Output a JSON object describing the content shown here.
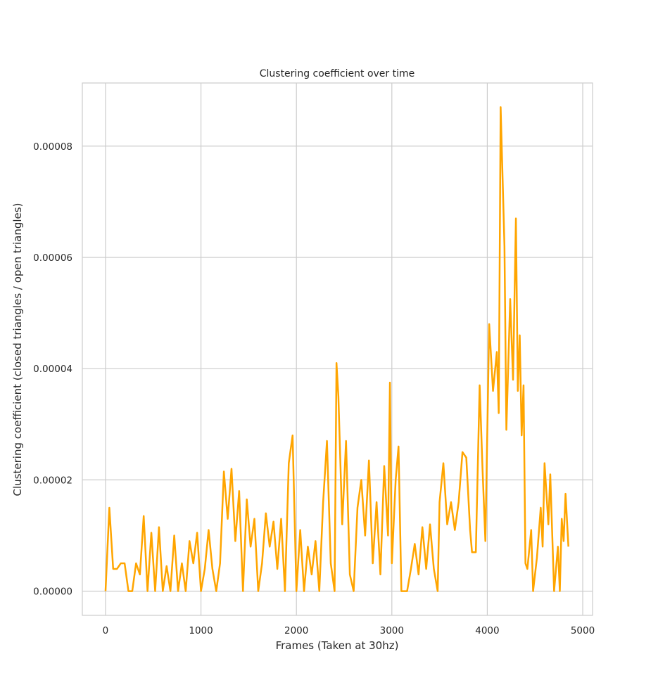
{
  "chart_data": {
    "type": "line",
    "title": "Clustering coefficient over time",
    "x_label": "Frames (Taken at 30hz)",
    "y_label": "Clustering coefficient (closed triangles / open triangles)",
    "color": "#ffa500",
    "grid": true,
    "xlim": [
      -243,
      5103
    ],
    "ylim": [
      -4.35e-06,
      9.135e-05
    ],
    "xticks": [
      0,
      1000,
      2000,
      3000,
      4000,
      5000
    ],
    "yticks": [
      {
        "value": 0,
        "label": "0.00000"
      },
      {
        "value": 2e-05,
        "label": "0.00002"
      },
      {
        "value": 4e-05,
        "label": "0.00004"
      },
      {
        "value": 6e-05,
        "label": "0.00006"
      },
      {
        "value": 8e-05,
        "label": "0.00008"
      }
    ],
    "x": [
      0,
      40,
      80,
      120,
      160,
      200,
      240,
      280,
      320,
      360,
      400,
      440,
      480,
      520,
      560,
      600,
      640,
      680,
      720,
      760,
      800,
      840,
      880,
      920,
      960,
      1000,
      1040,
      1080,
      1120,
      1160,
      1200,
      1240,
      1280,
      1320,
      1360,
      1400,
      1440,
      1480,
      1520,
      1560,
      1600,
      1640,
      1680,
      1720,
      1760,
      1800,
      1840,
      1880,
      1920,
      1960,
      2000,
      2040,
      2080,
      2120,
      2160,
      2200,
      2240,
      2280,
      2320,
      2360,
      2400,
      2420,
      2440,
      2480,
      2520,
      2560,
      2600,
      2640,
      2680,
      2720,
      2760,
      2800,
      2840,
      2880,
      2920,
      2960,
      2980,
      3000,
      3040,
      3070,
      3100,
      3160,
      3200,
      3240,
      3280,
      3320,
      3360,
      3400,
      3440,
      3480,
      3500,
      3540,
      3580,
      3620,
      3660,
      3700,
      3740,
      3780,
      3820,
      3840,
      3880,
      3920,
      3950,
      3980,
      4020,
      4060,
      4100,
      4120,
      4140,
      4180,
      4200,
      4240,
      4270,
      4300,
      4320,
      4340,
      4360,
      4380,
      4400,
      4420,
      4460,
      4480,
      4520,
      4560,
      4580,
      4600,
      4640,
      4660,
      4700,
      4740,
      4760,
      4780,
      4800,
      4820,
      4850
    ],
    "values": [
      0,
      1.5e-05,
      4e-06,
      4e-06,
      5e-06,
      5e-06,
      0,
      0,
      5e-06,
      3e-06,
      1.35e-05,
      0,
      1.05e-05,
      0,
      1.15e-05,
      0,
      4.5e-06,
      0,
      1e-05,
      0,
      5e-06,
      0,
      9e-06,
      5e-06,
      1.05e-05,
      0,
      4e-06,
      1.1e-05,
      4e-06,
      0,
      5e-06,
      2.15e-05,
      1.3e-05,
      2.2e-05,
      9e-06,
      1.8e-05,
      0,
      1.65e-05,
      8e-06,
      1.3e-05,
      0,
      5e-06,
      1.4e-05,
      8e-06,
      1.25e-05,
      4e-06,
      1.3e-05,
      0,
      2.3e-05,
      2.8e-05,
      0,
      1.1e-05,
      0,
      8e-06,
      3e-06,
      9e-06,
      0,
      1.6e-05,
      2.7e-05,
      5e-06,
      0,
      4.1e-05,
      3.5e-05,
      1.2e-05,
      2.7e-05,
      3e-06,
      0,
      1.5e-05,
      2e-05,
      1e-05,
      2.35e-05,
      5e-06,
      1.6e-05,
      3e-06,
      2.25e-05,
      1e-05,
      3.75e-05,
      5e-06,
      2e-05,
      2.6e-05,
      0,
      0,
      4e-06,
      8.5e-06,
      3e-06,
      1.15e-05,
      4e-06,
      1.2e-05,
      4e-06,
      0,
      1.6e-05,
      2.3e-05,
      1.2e-05,
      1.6e-05,
      1.1e-05,
      1.6e-05,
      2.5e-05,
      2.4e-05,
      1.1e-05,
      7e-06,
      7e-06,
      3.7e-05,
      2.2e-05,
      9e-06,
      4.8e-05,
      3.6e-05,
      4.3e-05,
      3.2e-05,
      8.7e-05,
      6.2e-05,
      2.9e-05,
      5.25e-05,
      3.8e-05,
      6.7e-05,
      3.6e-05,
      4.6e-05,
      2.8e-05,
      3.7e-05,
      5e-06,
      4e-06,
      1.1e-05,
      0,
      6e-06,
      1.5e-05,
      8e-06,
      2.3e-05,
      1.2e-05,
      2.1e-05,
      0,
      8e-06,
      0,
      1.3e-05,
      9e-06,
      1.75e-05,
      8e-06
    ]
  }
}
